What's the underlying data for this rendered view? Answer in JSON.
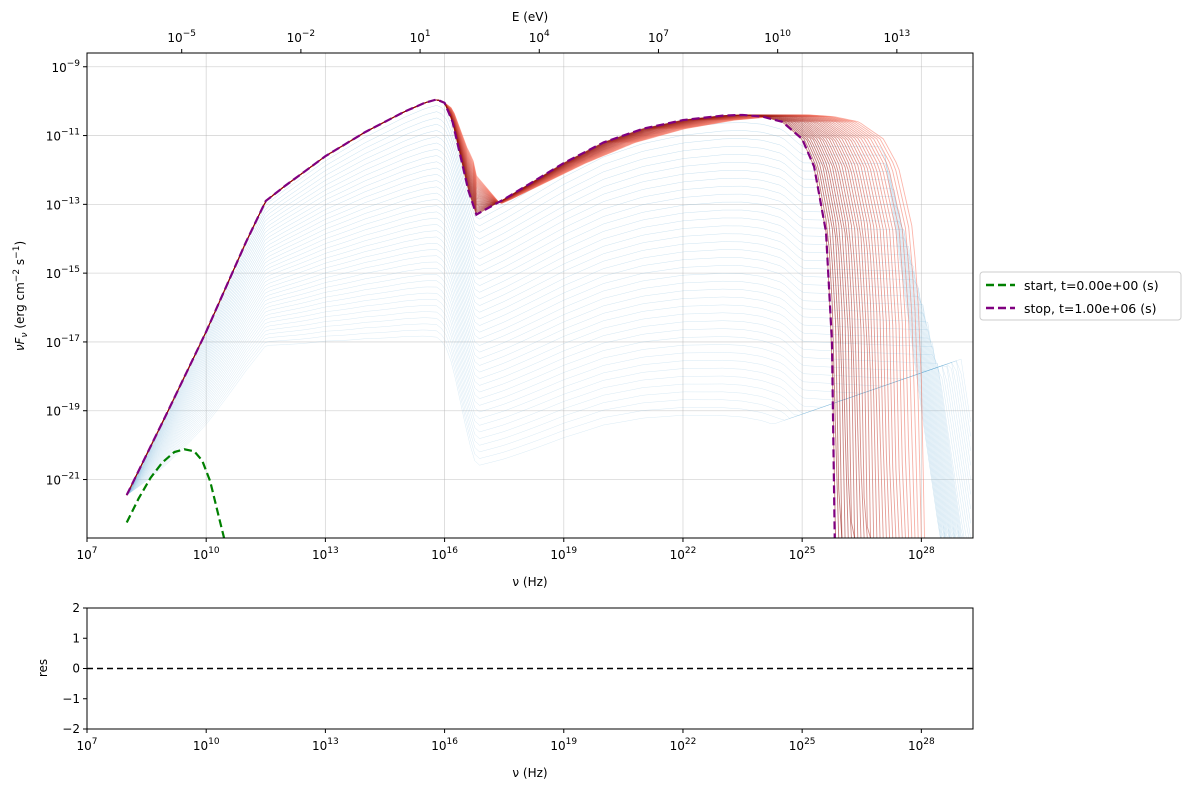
{
  "chart_data": [
    {
      "type": "line",
      "title": "",
      "xlabel": "ν  (Hz)",
      "ylabel": "νF_ν  (erg cm⁻² s⁻¹)",
      "x2label": "E (eV)",
      "xscale": "log",
      "yscale": "log",
      "xlim_log10": [
        7,
        29.3
      ],
      "ylim_log10": [
        -22.7,
        -8.6
      ],
      "grid": true,
      "legend_placement": "right-outside",
      "x_ticks": [
        {
          "v": 7,
          "label": "10",
          "exp": "7"
        },
        {
          "v": 10,
          "label": "10",
          "exp": "10"
        },
        {
          "v": 13,
          "label": "10",
          "exp": "13"
        },
        {
          "v": 16,
          "label": "10",
          "exp": "16"
        },
        {
          "v": 19,
          "label": "10",
          "exp": "19"
        },
        {
          "v": 22,
          "label": "10",
          "exp": "22"
        },
        {
          "v": 25,
          "label": "10",
          "exp": "25"
        },
        {
          "v": 28,
          "label": "10",
          "exp": "28"
        }
      ],
      "y_ticks": [
        {
          "v": -9,
          "label": "10",
          "exp": "−9"
        },
        {
          "v": -11,
          "label": "10",
          "exp": "−11"
        },
        {
          "v": -13,
          "label": "10",
          "exp": "−13"
        },
        {
          "v": -15,
          "label": "10",
          "exp": "−15"
        },
        {
          "v": -17,
          "label": "10",
          "exp": "−17"
        },
        {
          "v": -19,
          "label": "10",
          "exp": "−19"
        },
        {
          "v": -21,
          "label": "10",
          "exp": "−21"
        }
      ],
      "x2_ticks": [
        {
          "v": -5,
          "label": "10",
          "exp": "−5"
        },
        {
          "v": -2,
          "label": "10",
          "exp": "−2"
        },
        {
          "v": 1,
          "label": "10",
          "exp": "1"
        },
        {
          "v": 4,
          "label": "10",
          "exp": "4"
        },
        {
          "v": 7,
          "label": "10",
          "exp": "7"
        },
        {
          "v": 10,
          "label": "10",
          "exp": "10"
        },
        {
          "v": 13,
          "label": "10",
          "exp": "13"
        }
      ],
      "series": [
        {
          "name": "start, t=0.00e+00 (s)",
          "color": "#008000",
          "style": "dashed",
          "x_log10": [
            8.0,
            8.3,
            8.6,
            8.9,
            9.2,
            9.45,
            9.7,
            9.9,
            10.1,
            10.3,
            10.45
          ],
          "y_log10": [
            -22.25,
            -21.55,
            -20.95,
            -20.5,
            -20.2,
            -20.12,
            -20.18,
            -20.45,
            -21.05,
            -22.0,
            -22.7
          ]
        },
        {
          "name": "stop, t=1.00e+06 (s)",
          "color": "#800080",
          "style": "dashed",
          "x_log10": [
            8.0,
            9.0,
            10.0,
            10.5,
            11.0,
            11.5,
            12.0,
            13.0,
            14.0,
            15.0,
            15.5,
            15.8,
            16.0,
            16.2,
            16.4,
            16.6,
            16.8,
            16.95,
            17.5,
            18.0,
            19.0,
            20.0,
            21.0,
            22.0,
            23.0,
            23.5,
            24.0,
            24.5,
            25.0,
            25.3,
            25.6,
            25.75,
            25.82
          ],
          "y_log10": [
            -21.45,
            -19.1,
            -16.7,
            -15.4,
            -14.1,
            -12.9,
            -12.45,
            -11.6,
            -10.9,
            -10.3,
            -10.05,
            -9.95,
            -10.05,
            -10.6,
            -11.6,
            -12.6,
            -13.3,
            -13.2,
            -12.85,
            -12.5,
            -11.8,
            -11.2,
            -10.8,
            -10.55,
            -10.42,
            -10.4,
            -10.45,
            -10.6,
            -11.1,
            -11.9,
            -13.8,
            -17.0,
            -22.7
          ]
        }
      ]
    },
    {
      "type": "line",
      "title": "",
      "xlabel": "ν  (Hz)",
      "ylabel": "res",
      "xscale": "log",
      "xlim_log10": [
        7,
        29.3
      ],
      "ylim": [
        -2,
        2
      ],
      "grid": false,
      "x_ticks": [
        {
          "v": 7,
          "label": "10",
          "exp": "7"
        },
        {
          "v": 10,
          "label": "10",
          "exp": "10"
        },
        {
          "v": 13,
          "label": "10",
          "exp": "13"
        },
        {
          "v": 16,
          "label": "10",
          "exp": "16"
        },
        {
          "v": 19,
          "label": "10",
          "exp": "19"
        },
        {
          "v": 22,
          "label": "10",
          "exp": "22"
        },
        {
          "v": 25,
          "label": "10",
          "exp": "25"
        },
        {
          "v": 28,
          "label": "10",
          "exp": "28"
        }
      ],
      "y_ticks": [
        {
          "v": 2,
          "label": "2"
        },
        {
          "v": 1,
          "label": "1"
        },
        {
          "v": 0,
          "label": "0"
        },
        {
          "v": -1,
          "label": "−1"
        },
        {
          "v": -2,
          "label": "−2"
        }
      ],
      "reference_line": {
        "y": 0,
        "color": "#000000",
        "style": "dashed"
      }
    }
  ]
}
